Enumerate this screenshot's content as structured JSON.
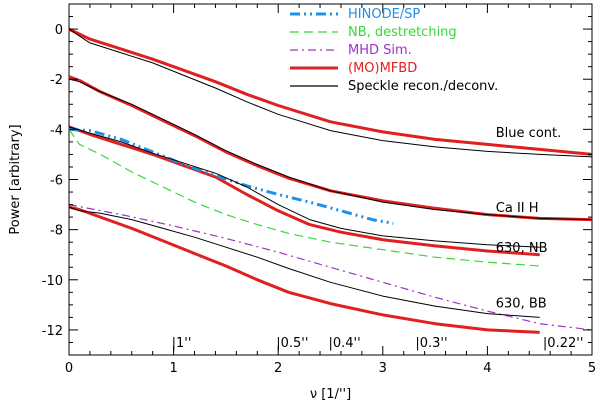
{
  "chart_data": {
    "type": "line",
    "xlabel": "ν [1/'']",
    "ylabel": "Power [arbitrary]",
    "xlim": [
      0,
      5
    ],
    "ylim": [
      -13,
      1
    ],
    "xticks": [
      "0",
      "1",
      "2",
      "3",
      "4",
      "5"
    ],
    "yticks": [
      "0",
      "-2",
      "-4",
      "-6",
      "-8",
      "-10",
      "-12"
    ],
    "scale_marks": [
      {
        "x": 1.0,
        "label": "|1''"
      },
      {
        "x": 2.0,
        "label": "|0.5''"
      },
      {
        "x": 2.5,
        "label": "|0.4''"
      },
      {
        "x": 3.33,
        "label": "|0.3''"
      },
      {
        "x": 4.55,
        "label": "|0.22''"
      }
    ],
    "legend": [
      {
        "name": "HINODE/SP",
        "color": "#1e90e8",
        "dash": "10,4,2,4,2,4"
      },
      {
        "name": "NB, destretching",
        "color": "#39d839",
        "dash": "9,5"
      },
      {
        "name": "MHD Sim.",
        "color": "#9a35c8",
        "dash": "8,4,2,4"
      },
      {
        "name": "(MO)MFBD",
        "color": "#e02020",
        "dash": ""
      },
      {
        "name": "Speckle recon./deconv.",
        "color": "#000000",
        "dash": ""
      }
    ],
    "annotations": [
      {
        "text": "Blue cont.",
        "x": 4.08,
        "y": -4.3
      },
      {
        "text": "Ca II H",
        "x": 4.08,
        "y": -7.3
      },
      {
        "text": "630, NB",
        "x": 4.08,
        "y": -8.9
      },
      {
        "text": "630, BB",
        "x": 4.08,
        "y": -11.1
      }
    ],
    "series": [
      {
        "name": "Blue cont. (MO)MFBD",
        "group": "(MO)MFBD",
        "color": "#e02020",
        "width": 3,
        "dash": "",
        "x": [
          0,
          0.2,
          0.5,
          0.8,
          1.1,
          1.4,
          1.7,
          2.0,
          2.5,
          3.0,
          3.5,
          4.0,
          4.5,
          5.0
        ],
        "y": [
          0.0,
          -0.4,
          -0.8,
          -1.2,
          -1.65,
          -2.1,
          -2.6,
          -3.05,
          -3.7,
          -4.1,
          -4.4,
          -4.6,
          -4.8,
          -5.0
        ]
      },
      {
        "name": "Blue cont. Speckle",
        "group": "Speckle recon./deconv.",
        "color": "#000000",
        "width": 1,
        "dash": "",
        "x": [
          0,
          0.2,
          0.5,
          0.8,
          1.1,
          1.4,
          1.7,
          2.0,
          2.5,
          3.0,
          3.5,
          4.0,
          4.5,
          5.0
        ],
        "y": [
          0.0,
          -0.55,
          -0.95,
          -1.35,
          -1.85,
          -2.35,
          -2.9,
          -3.4,
          -4.05,
          -4.45,
          -4.7,
          -4.88,
          -5.0,
          -5.1
        ]
      },
      {
        "name": "Ca II H (MO)MFBD",
        "group": "(MO)MFBD",
        "color": "#e02020",
        "width": 3,
        "dash": "",
        "x": [
          0,
          0.1,
          0.3,
          0.6,
          0.9,
          1.2,
          1.5,
          1.8,
          2.1,
          2.5,
          3.0,
          3.5,
          4.0,
          4.5,
          5.0
        ],
        "y": [
          -1.9,
          -2.05,
          -2.5,
          -3.05,
          -3.65,
          -4.25,
          -4.9,
          -5.45,
          -5.95,
          -6.45,
          -6.85,
          -7.15,
          -7.4,
          -7.55,
          -7.6
        ]
      },
      {
        "name": "Ca II H Speckle",
        "group": "Speckle recon./deconv.",
        "color": "#000000",
        "width": 1,
        "dash": "",
        "x": [
          0,
          0.1,
          0.3,
          0.6,
          0.9,
          1.2,
          1.5,
          1.8,
          2.1,
          2.5,
          3.0,
          3.5,
          4.0,
          4.5,
          5.0
        ],
        "y": [
          -2.0,
          -2.1,
          -2.5,
          -3.0,
          -3.6,
          -4.2,
          -4.85,
          -5.4,
          -5.9,
          -6.45,
          -6.9,
          -7.2,
          -7.4,
          -7.55,
          -7.6
        ]
      },
      {
        "name": "630 NB (MO)MFBD",
        "group": "(MO)MFBD",
        "color": "#e02020",
        "width": 3,
        "dash": "",
        "x": [
          0,
          0.2,
          0.5,
          0.8,
          1.1,
          1.4,
          1.7,
          2.0,
          2.3,
          2.6,
          3.0,
          3.5,
          4.0,
          4.5
        ],
        "y": [
          -3.9,
          -4.2,
          -4.6,
          -5.0,
          -5.45,
          -5.9,
          -6.6,
          -7.25,
          -7.8,
          -8.1,
          -8.4,
          -8.65,
          -8.85,
          -9.0
        ]
      },
      {
        "name": "630 NB Speckle",
        "group": "Speckle recon./deconv.",
        "color": "#000000",
        "width": 1,
        "dash": "",
        "x": [
          0,
          0.2,
          0.5,
          0.8,
          1.1,
          1.4,
          1.7,
          2.0,
          2.3,
          2.6,
          3.0,
          3.5,
          4.0,
          4.5
        ],
        "y": [
          -3.9,
          -4.15,
          -4.5,
          -4.95,
          -5.35,
          -5.75,
          -6.3,
          -7.0,
          -7.6,
          -7.95,
          -8.25,
          -8.45,
          -8.6,
          -8.7
        ]
      },
      {
        "name": "630 BB (MO)MFBD",
        "group": "(MO)MFBD",
        "color": "#e02020",
        "width": 3,
        "dash": "",
        "x": [
          0,
          0.1,
          0.3,
          0.6,
          0.9,
          1.2,
          1.5,
          1.8,
          2.1,
          2.5,
          3.0,
          3.5,
          4.0,
          4.5
        ],
        "y": [
          -7.1,
          -7.2,
          -7.5,
          -7.95,
          -8.45,
          -8.95,
          -9.45,
          -10.0,
          -10.5,
          -10.95,
          -11.4,
          -11.75,
          -12.0,
          -12.1
        ]
      },
      {
        "name": "630 BB Speckle",
        "group": "Speckle recon./deconv.",
        "color": "#000000",
        "width": 1,
        "dash": "",
        "x": [
          0,
          0.1,
          0.3,
          0.6,
          0.9,
          1.2,
          1.5,
          1.8,
          2.1,
          2.5,
          3.0,
          3.5,
          4.0,
          4.5
        ],
        "y": [
          -7.1,
          -7.25,
          -7.35,
          -7.6,
          -7.95,
          -8.3,
          -8.7,
          -9.1,
          -9.55,
          -10.1,
          -10.65,
          -11.05,
          -11.35,
          -11.5
        ]
      },
      {
        "name": "HINODE/SP",
        "group": "HINODE/SP",
        "color": "#1e90e8",
        "width": 3,
        "dash": "10,4,2,4,2,4",
        "x": [
          0,
          0.2,
          0.5,
          0.8,
          1.1,
          1.4,
          1.7,
          2.0,
          2.3,
          2.6,
          2.9,
          3.1
        ],
        "y": [
          -4.0,
          -4.05,
          -4.4,
          -4.9,
          -5.4,
          -5.85,
          -6.25,
          -6.6,
          -6.9,
          -7.25,
          -7.6,
          -7.75
        ]
      },
      {
        "name": "NB, destretching",
        "group": "NB, destretching",
        "color": "#39d839",
        "width": 1.2,
        "dash": "9,5",
        "x": [
          0,
          0.1,
          0.3,
          0.6,
          0.9,
          1.2,
          1.5,
          1.8,
          2.1,
          2.5,
          3.0,
          3.5,
          4.0,
          4.5
        ],
        "y": [
          -4.0,
          -4.6,
          -5.0,
          -5.7,
          -6.3,
          -6.9,
          -7.4,
          -7.8,
          -8.15,
          -8.5,
          -8.8,
          -9.1,
          -9.3,
          -9.45
        ]
      },
      {
        "name": "MHD Sim.",
        "group": "MHD Sim.",
        "color": "#9a35c8",
        "width": 1.2,
        "dash": "8,4,2,4",
        "x": [
          0,
          0.5,
          1.0,
          1.5,
          2.0,
          2.5,
          3.0,
          3.5,
          4.0,
          4.5,
          5.0
        ],
        "y": [
          -7.0,
          -7.4,
          -7.85,
          -8.35,
          -8.9,
          -9.5,
          -10.1,
          -10.7,
          -11.25,
          -11.75,
          -12.0
        ]
      }
    ]
  }
}
